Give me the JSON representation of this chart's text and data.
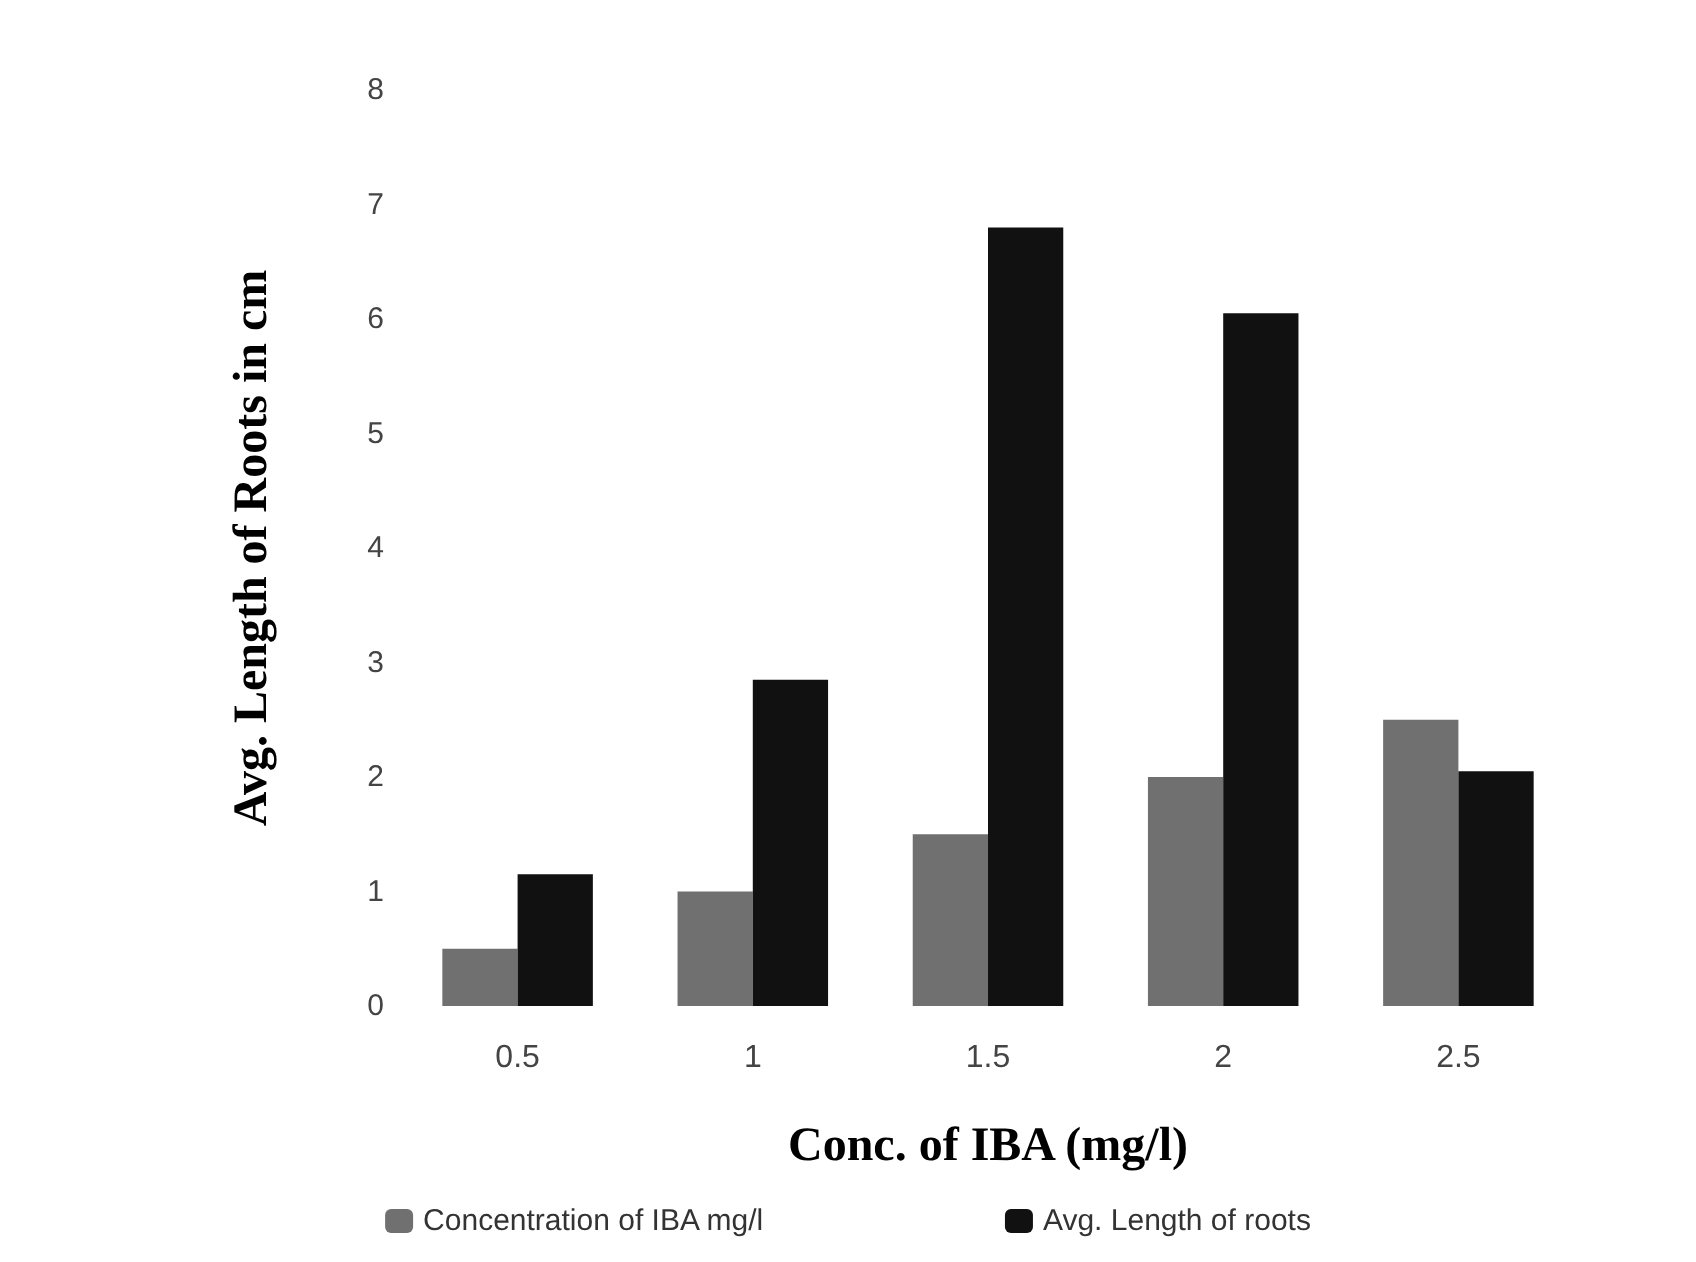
{
  "chart_data": {
    "type": "bar",
    "xlabel": "Conc. of IBA (mg/l)",
    "ylabel": "Avg. Length of Roots in cm",
    "categories": [
      "0.5",
      "1",
      "1.5",
      "2",
      "2.5"
    ],
    "series": [
      {
        "name": "Concentration of IBA mg/l",
        "color": "#707070",
        "values": [
          0.5,
          1,
          1.5,
          2,
          2.5
        ]
      },
      {
        "name": "Avg. Length of roots",
        "color": "#111111",
        "values": [
          1.15,
          2.85,
          6.8,
          6.05,
          2.05
        ]
      }
    ],
    "ylim": [
      0,
      8
    ],
    "yticks": [
      0,
      1,
      2,
      3,
      4,
      5,
      6,
      7,
      8
    ],
    "grid": false,
    "legend": "bottom"
  }
}
